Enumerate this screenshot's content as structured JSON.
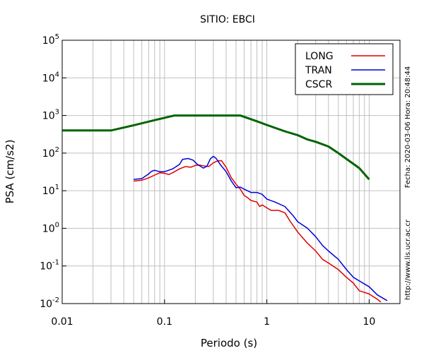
{
  "chart_data": {
    "type": "line",
    "title": "SITIO: EBCI",
    "xlabel": "Periodo (s)",
    "ylabel": "PSA (cm/s2)",
    "x_scale": "log",
    "y_scale": "log",
    "xlim": [
      0.01,
      20
    ],
    "ylim": [
      0.01,
      100000
    ],
    "x_ticks": [
      {
        "value": 0.01,
        "label": "0.01"
      },
      {
        "value": 0.1,
        "label": "0.1"
      },
      {
        "value": 1,
        "label": "1"
      },
      {
        "value": 10,
        "label": "10"
      }
    ],
    "y_ticks": [
      {
        "value": 0.01,
        "base": "10",
        "exp": "-2"
      },
      {
        "value": 0.1,
        "base": "10",
        "exp": "-1"
      },
      {
        "value": 1,
        "base": "10",
        "exp": "0"
      },
      {
        "value": 10,
        "base": "10",
        "exp": "1"
      },
      {
        "value": 100,
        "base": "10",
        "exp": "2"
      },
      {
        "value": 1000,
        "base": "10",
        "exp": "3"
      },
      {
        "value": 10000,
        "base": "10",
        "exp": "4"
      },
      {
        "value": 100000,
        "base": "10",
        "exp": "5"
      }
    ],
    "grid": true,
    "legend_position": "top-right",
    "series": [
      {
        "name": "LONG",
        "color": "#e00000",
        "points": [
          [
            0.05,
            18
          ],
          [
            0.06,
            19
          ],
          [
            0.07,
            22
          ],
          [
            0.08,
            26
          ],
          [
            0.09,
            30
          ],
          [
            0.1,
            29
          ],
          [
            0.11,
            27
          ],
          [
            0.12,
            30
          ],
          [
            0.14,
            38
          ],
          [
            0.16,
            44
          ],
          [
            0.18,
            42
          ],
          [
            0.2,
            47
          ],
          [
            0.22,
            48
          ],
          [
            0.25,
            45
          ],
          [
            0.27,
            44
          ],
          [
            0.3,
            55
          ],
          [
            0.33,
            62
          ],
          [
            0.36,
            63
          ],
          [
            0.4,
            42
          ],
          [
            0.45,
            22
          ],
          [
            0.5,
            15
          ],
          [
            0.55,
            11
          ],
          [
            0.6,
            7.5
          ],
          [
            0.65,
            6.5
          ],
          [
            0.7,
            5.5
          ],
          [
            0.8,
            5
          ],
          [
            0.85,
            3.8
          ],
          [
            0.9,
            4.2
          ],
          [
            1.0,
            3.5
          ],
          [
            1.1,
            3
          ],
          [
            1.3,
            3
          ],
          [
            1.5,
            2.6
          ],
          [
            1.7,
            1.5
          ],
          [
            2.0,
            0.8
          ],
          [
            2.5,
            0.4
          ],
          [
            3.0,
            0.25
          ],
          [
            3.5,
            0.15
          ],
          [
            4.0,
            0.12
          ],
          [
            5.0,
            0.08
          ],
          [
            6.0,
            0.05
          ],
          [
            7.0,
            0.035
          ],
          [
            8.0,
            0.022
          ],
          [
            10,
            0.018
          ],
          [
            12,
            0.013
          ],
          [
            13,
            0.011
          ]
        ]
      },
      {
        "name": "TRAN",
        "color": "#0000dd",
        "points": [
          [
            0.05,
            20
          ],
          [
            0.06,
            21
          ],
          [
            0.07,
            28
          ],
          [
            0.075,
            33
          ],
          [
            0.08,
            35
          ],
          [
            0.09,
            32
          ],
          [
            0.1,
            32
          ],
          [
            0.12,
            38
          ],
          [
            0.14,
            50
          ],
          [
            0.15,
            68
          ],
          [
            0.17,
            72
          ],
          [
            0.19,
            65
          ],
          [
            0.21,
            50
          ],
          [
            0.24,
            40
          ],
          [
            0.26,
            45
          ],
          [
            0.28,
            70
          ],
          [
            0.3,
            82
          ],
          [
            0.32,
            72
          ],
          [
            0.35,
            50
          ],
          [
            0.4,
            32
          ],
          [
            0.45,
            18
          ],
          [
            0.5,
            12
          ],
          [
            0.55,
            12.5
          ],
          [
            0.6,
            11
          ],
          [
            0.7,
            9
          ],
          [
            0.8,
            9
          ],
          [
            0.9,
            8
          ],
          [
            1.0,
            6
          ],
          [
            1.2,
            5
          ],
          [
            1.5,
            3.8
          ],
          [
            1.8,
            2.2
          ],
          [
            2.0,
            1.5
          ],
          [
            2.5,
            1
          ],
          [
            3.0,
            0.6
          ],
          [
            3.5,
            0.35
          ],
          [
            4.0,
            0.25
          ],
          [
            5.0,
            0.15
          ],
          [
            6.0,
            0.08
          ],
          [
            7.0,
            0.05
          ],
          [
            8.0,
            0.04
          ],
          [
            10,
            0.028
          ],
          [
            12,
            0.017
          ],
          [
            15,
            0.012
          ]
        ]
      },
      {
        "name": "CSCR",
        "color": "#006400",
        "points": [
          [
            0.01,
            400
          ],
          [
            0.03,
            400
          ],
          [
            0.05,
            550
          ],
          [
            0.08,
            750
          ],
          [
            0.125,
            1000
          ],
          [
            0.3,
            1000
          ],
          [
            0.55,
            1000
          ],
          [
            0.8,
            700
          ],
          [
            1.0,
            560
          ],
          [
            1.5,
            380
          ],
          [
            2.0,
            300
          ],
          [
            2.5,
            230
          ],
          [
            3.0,
            200
          ],
          [
            4.0,
            150
          ],
          [
            5.0,
            100
          ],
          [
            6.0,
            70
          ],
          [
            8.0,
            40
          ],
          [
            10,
            20
          ]
        ]
      }
    ]
  },
  "side_text": {
    "date": "Fecha: 2020-03-06  Hora: 20:48:44",
    "url": "http://www.lis.ucr.ac.cr"
  }
}
